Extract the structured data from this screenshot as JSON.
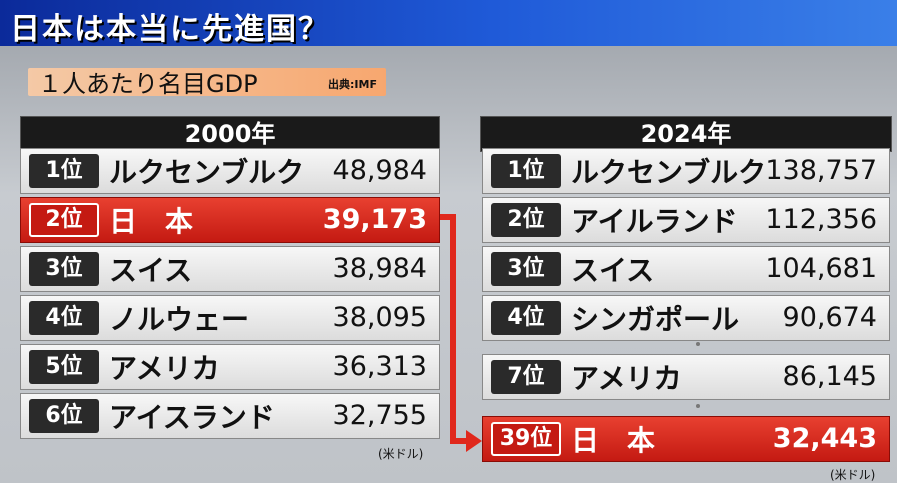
{
  "title": "日本は本当に先進国？",
  "subtitle": "１人あたり名目GDP",
  "source": "出典:IMF",
  "unit": "(米ドル)",
  "unit_right": "(米ドル)",
  "colors": {
    "highlight": "#d4261a",
    "title_bar": "#1f5ad8"
  },
  "left": {
    "year": "2000年",
    "rows": [
      {
        "rank": "1位",
        "name": "ルクセンブルク",
        "value": "48,984"
      },
      {
        "rank": "2位",
        "name": "日　本",
        "value": "39,173"
      },
      {
        "rank": "3位",
        "name": "スイス",
        "value": "38,984"
      },
      {
        "rank": "4位",
        "name": "ノルウェー",
        "value": "38,095"
      },
      {
        "rank": "5位",
        "name": "アメリカ",
        "value": "36,313"
      },
      {
        "rank": "6位",
        "name": "アイスランド",
        "value": "32,755"
      }
    ]
  },
  "right": {
    "year": "2024年",
    "rows": [
      {
        "rank": "1位",
        "name": "ルクセンブルク",
        "value": "138,757"
      },
      {
        "rank": "2位",
        "name": "アイルランド",
        "value": "112,356"
      },
      {
        "rank": "3位",
        "name": "スイス",
        "value": "104,681"
      },
      {
        "rank": "4位",
        "name": "シンガポール",
        "value": "90,674"
      },
      {
        "rank": "7位",
        "name": "アメリカ",
        "value": "86,145"
      },
      {
        "rank": "39位",
        "name": "日　本",
        "value": "32,443"
      }
    ]
  }
}
